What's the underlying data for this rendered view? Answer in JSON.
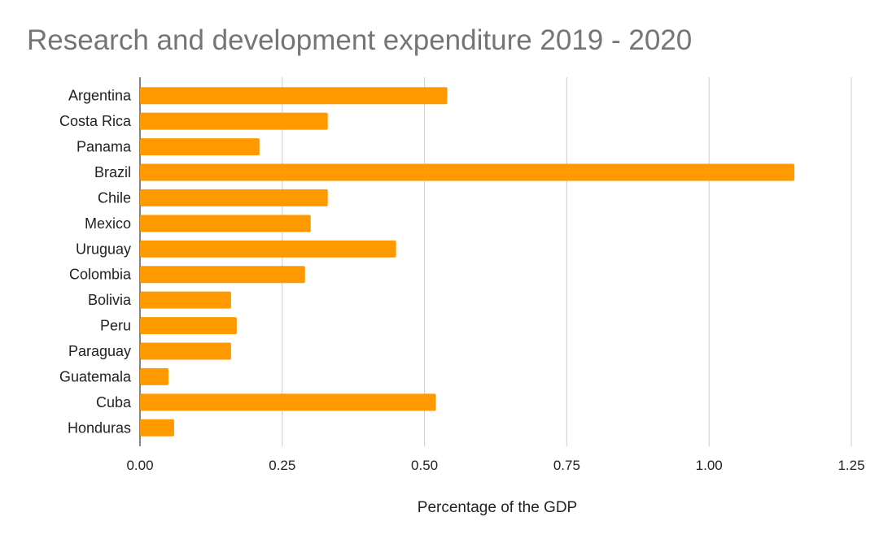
{
  "chart_data": {
    "type": "bar",
    "orientation": "horizontal",
    "title": "Research and development expenditure 2019 - 2020",
    "xlabel": "Percentage of the GDP",
    "ylabel": "",
    "xlim": [
      0,
      1.25
    ],
    "xticks": [
      "0.00",
      "0.25",
      "0.50",
      "0.75",
      "1.00",
      "1.25"
    ],
    "grid": true,
    "legend": "none",
    "categories": [
      "Argentina",
      "Costa Rica",
      "Panama",
      "Brazil",
      "Chile",
      "Mexico",
      "Uruguay",
      "Colombia",
      "Bolivia",
      "Peru",
      "Paraguay",
      "Guatemala",
      "Cuba",
      "Honduras"
    ],
    "values": [
      0.54,
      0.33,
      0.21,
      1.15,
      0.33,
      0.3,
      0.45,
      0.29,
      0.16,
      0.17,
      0.16,
      0.05,
      0.52,
      0.06
    ],
    "colors": {
      "bar": "#ff9900",
      "grid": "#cccccc",
      "axis": "#333333"
    }
  }
}
